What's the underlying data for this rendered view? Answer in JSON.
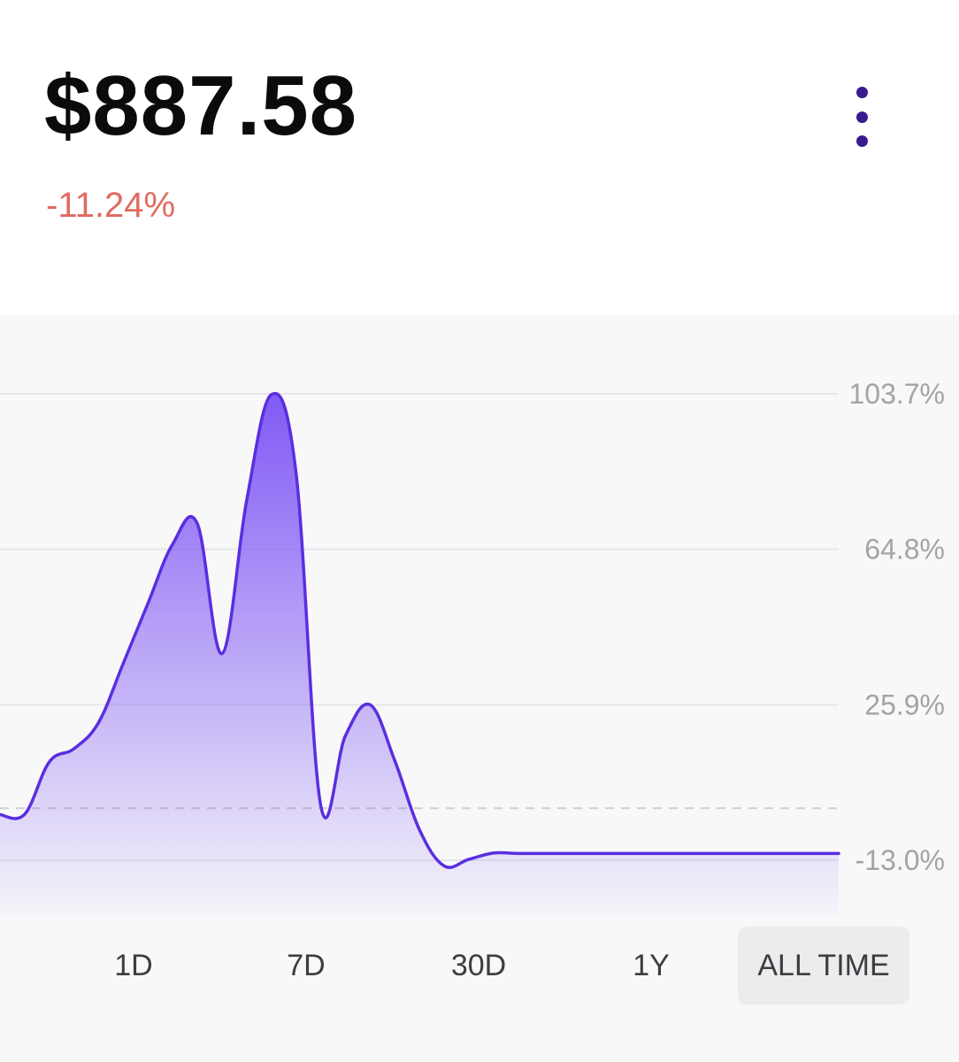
{
  "header": {
    "price": "$887.58",
    "change": "-11.24%",
    "change_color": "#e06b61",
    "menu_icon": "more-vertical-icon"
  },
  "chart_data": {
    "type": "area",
    "title": "",
    "xlabel": "",
    "ylabel": "",
    "y_tick_labels": [
      "103.7%",
      "64.8%",
      "25.9%",
      "-13.0%"
    ],
    "y_ticks": [
      103.7,
      64.8,
      25.9,
      -13.0
    ],
    "ylim": [
      -13.0,
      103.7
    ],
    "baseline": 0,
    "grid": true,
    "line_color": "#5b2ee0",
    "fill_color": "#7a52f4",
    "series": [
      {
        "x": [
          0,
          1,
          2,
          3,
          4,
          5,
          6,
          7,
          8,
          9,
          10,
          11,
          12,
          13,
          14,
          15,
          16,
          17,
          18,
          19,
          20,
          21,
          22,
          23,
          24,
          25,
          26,
          27,
          28,
          29,
          30,
          31,
          32,
          33,
          34
        ],
        "values": [
          -1.6,
          -1.5,
          11.6,
          14.9,
          21.5,
          36.3,
          51.3,
          66.1,
          71.2,
          38.7,
          77.0,
          103.5,
          84.0,
          0.8,
          18.1,
          25.9,
          12.0,
          -5.3,
          -14.4,
          -12.8,
          -11.2,
          -11.3,
          -11.3,
          -11.3,
          -11.3,
          -11.3,
          -11.3,
          -11.3,
          -11.3,
          -11.3,
          -11.3,
          -11.3,
          -11.3,
          -11.3,
          -11.3
        ]
      }
    ]
  },
  "tabs": [
    {
      "label": "1D",
      "active": false
    },
    {
      "label": "7D",
      "active": false
    },
    {
      "label": "30D",
      "active": false
    },
    {
      "label": "1Y",
      "active": false
    },
    {
      "label": "ALL TIME",
      "active": true
    }
  ]
}
